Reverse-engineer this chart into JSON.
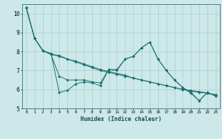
{
  "xlabel": "Humidex (Indice chaleur)",
  "bg_color": "#cce8e8",
  "line_color": "#1a6e6e",
  "grid_color": "#aacccc",
  "xlim": [
    -0.5,
    23.5
  ],
  "ylim": [
    5,
    10.5
  ],
  "yticks": [
    5,
    6,
    7,
    8,
    9,
    10
  ],
  "series": [
    {
      "x": [
        0,
        1,
        2,
        3,
        4,
        5,
        6,
        7,
        8,
        9,
        10,
        11,
        12,
        13,
        14,
        15,
        16,
        17,
        18,
        19,
        20,
        21,
        22,
        23
      ],
      "y": [
        10.3,
        8.7,
        8.05,
        7.9,
        5.85,
        5.95,
        6.3,
        6.4,
        6.35,
        6.2,
        7.05,
        7.0,
        7.6,
        7.75,
        8.2,
        8.5,
        7.6,
        7.0,
        6.5,
        6.1,
        5.8,
        5.4,
        5.85,
        5.65
      ]
    },
    {
      "x": [
        0,
        1,
        2,
        3,
        4,
        5,
        6,
        7,
        8,
        9,
        10,
        11,
        12,
        13,
        14,
        15,
        16,
        17,
        18,
        19,
        20,
        21,
        22,
        23
      ],
      "y": [
        10.3,
        8.7,
        8.05,
        7.85,
        6.7,
        6.5,
        6.5,
        6.5,
        6.4,
        6.35,
        7.05,
        7.05,
        7.6,
        7.75,
        8.2,
        8.5,
        7.6,
        7.0,
        6.5,
        6.1,
        5.85,
        5.4,
        5.85,
        5.65
      ]
    },
    {
      "x": [
        0,
        1,
        2,
        3,
        4,
        5,
        6,
        7,
        8,
        9,
        10,
        11,
        12,
        13,
        14,
        15,
        16,
        17,
        18,
        19,
        20,
        21,
        22,
        23
      ],
      "y": [
        10.3,
        8.7,
        8.05,
        7.85,
        7.8,
        7.6,
        7.45,
        7.3,
        7.15,
        7.0,
        6.9,
        6.8,
        6.7,
        6.6,
        6.5,
        6.4,
        6.3,
        6.2,
        6.1,
        6.0,
        5.9,
        5.85,
        5.8,
        5.7
      ]
    },
    {
      "x": [
        0,
        1,
        2,
        3,
        4,
        5,
        6,
        7,
        8,
        9,
        10,
        11,
        12,
        13,
        14,
        15,
        16,
        17,
        18,
        19,
        20,
        21,
        22,
        23
      ],
      "y": [
        10.3,
        8.7,
        8.05,
        7.85,
        7.75,
        7.6,
        7.5,
        7.35,
        7.2,
        7.05,
        6.95,
        6.85,
        6.75,
        6.6,
        6.5,
        6.4,
        6.3,
        6.2,
        6.1,
        6.0,
        5.95,
        5.88,
        5.82,
        5.72
      ]
    }
  ]
}
